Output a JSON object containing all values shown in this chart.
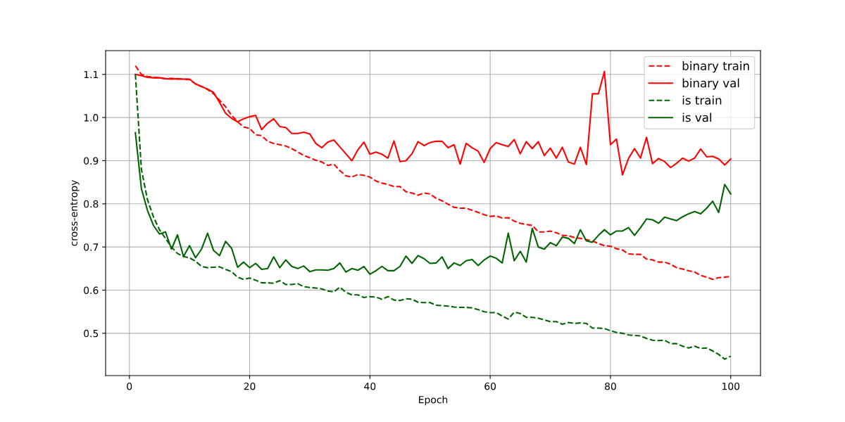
{
  "chart_data": {
    "type": "line",
    "xlabel": "Epoch",
    "ylabel": "cross-entropy",
    "x": [
      1,
      2,
      3,
      4,
      5,
      6,
      7,
      8,
      9,
      10,
      11,
      12,
      13,
      14,
      15,
      16,
      17,
      18,
      19,
      20,
      21,
      22,
      23,
      24,
      25,
      26,
      27,
      28,
      29,
      30,
      31,
      32,
      33,
      34,
      35,
      36,
      37,
      38,
      39,
      40,
      41,
      42,
      43,
      44,
      45,
      46,
      47,
      48,
      49,
      50,
      51,
      52,
      53,
      54,
      55,
      56,
      57,
      58,
      59,
      60,
      61,
      62,
      63,
      64,
      65,
      66,
      67,
      68,
      69,
      70,
      71,
      72,
      73,
      74,
      75,
      76,
      77,
      78,
      79,
      80,
      81,
      82,
      83,
      84,
      85,
      86,
      87,
      88,
      89,
      90,
      91,
      92,
      93,
      94,
      95,
      96,
      97,
      98,
      99,
      100
    ],
    "series": [
      {
        "name": "binary train",
        "color": "#ff0000",
        "line_style": "dashed",
        "values": [
          1.12,
          1.1,
          1.095,
          1.093,
          1.092,
          1.09,
          1.091,
          1.089,
          1.089,
          1.088,
          1.078,
          1.072,
          1.065,
          1.055,
          1.04,
          1.025,
          1.005,
          0.99,
          0.978,
          0.975,
          0.96,
          0.958,
          0.945,
          0.94,
          0.937,
          0.934,
          0.928,
          0.92,
          0.912,
          0.907,
          0.901,
          0.897,
          0.889,
          0.892,
          0.877,
          0.865,
          0.862,
          0.868,
          0.866,
          0.862,
          0.853,
          0.848,
          0.845,
          0.84,
          0.84,
          0.828,
          0.825,
          0.82,
          0.825,
          0.823,
          0.813,
          0.807,
          0.799,
          0.792,
          0.79,
          0.79,
          0.785,
          0.78,
          0.775,
          0.771,
          0.772,
          0.767,
          0.768,
          0.76,
          0.755,
          0.752,
          0.75,
          0.735,
          0.735,
          0.737,
          0.733,
          0.727,
          0.726,
          0.722,
          0.72,
          0.717,
          0.714,
          0.708,
          0.703,
          0.702,
          0.696,
          0.693,
          0.684,
          0.683,
          0.683,
          0.672,
          0.67,
          0.665,
          0.665,
          0.66,
          0.652,
          0.649,
          0.645,
          0.642,
          0.634,
          0.63,
          0.625,
          0.629,
          0.63,
          0.632
        ]
      },
      {
        "name": "binary val",
        "color": "#ff0000",
        "line_style": "solid",
        "values": [
          1.1,
          1.097,
          1.093,
          1.092,
          1.092,
          1.09,
          1.089,
          1.09,
          1.089,
          1.089,
          1.078,
          1.072,
          1.066,
          1.058,
          1.035,
          1.01,
          0.998,
          0.99,
          0.997,
          1.002,
          1.005,
          0.972,
          0.987,
          0.997,
          0.979,
          0.977,
          0.963,
          0.963,
          0.966,
          0.962,
          0.94,
          0.93,
          0.943,
          0.948,
          0.932,
          0.916,
          0.9,
          0.925,
          0.943,
          0.915,
          0.92,
          0.915,
          0.906,
          0.946,
          0.898,
          0.9,
          0.916,
          0.944,
          0.935,
          0.942,
          0.945,
          0.945,
          0.93,
          0.937,
          0.892,
          0.94,
          0.93,
          0.922,
          0.896,
          0.928,
          0.942,
          0.937,
          0.933,
          0.949,
          0.916,
          0.944,
          0.928,
          0.944,
          0.912,
          0.929,
          0.906,
          0.931,
          0.897,
          0.892,
          0.931,
          0.891,
          1.055,
          1.055,
          1.107,
          0.937,
          0.95,
          0.867,
          0.905,
          0.928,
          0.906,
          0.954,
          0.893,
          0.905,
          0.898,
          0.884,
          0.894,
          0.906,
          0.899,
          0.906,
          0.927,
          0.909,
          0.91,
          0.904,
          0.89,
          0.904
        ]
      },
      {
        "name": "is train",
        "color": "#006400",
        "line_style": "dashed",
        "values": [
          1.1,
          0.88,
          0.81,
          0.77,
          0.74,
          0.72,
          0.7,
          0.685,
          0.678,
          0.675,
          0.667,
          0.655,
          0.652,
          0.653,
          0.654,
          0.648,
          0.643,
          0.63,
          0.625,
          0.628,
          0.623,
          0.617,
          0.617,
          0.616,
          0.622,
          0.613,
          0.613,
          0.615,
          0.608,
          0.606,
          0.605,
          0.603,
          0.598,
          0.596,
          0.607,
          0.595,
          0.589,
          0.589,
          0.583,
          0.585,
          0.584,
          0.579,
          0.585,
          0.577,
          0.576,
          0.58,
          0.579,
          0.572,
          0.571,
          0.571,
          0.565,
          0.564,
          0.563,
          0.561,
          0.56,
          0.56,
          0.559,
          0.555,
          0.55,
          0.548,
          0.548,
          0.54,
          0.533,
          0.549,
          0.546,
          0.537,
          0.537,
          0.535,
          0.531,
          0.527,
          0.527,
          0.521,
          0.525,
          0.523,
          0.524,
          0.523,
          0.512,
          0.512,
          0.511,
          0.506,
          0.502,
          0.5,
          0.496,
          0.495,
          0.494,
          0.488,
          0.484,
          0.483,
          0.484,
          0.476,
          0.476,
          0.47,
          0.466,
          0.47,
          0.465,
          0.466,
          0.459,
          0.451,
          0.44,
          0.447
        ]
      },
      {
        "name": "is val",
        "color": "#006400",
        "line_style": "solid",
        "values": [
          0.965,
          0.835,
          0.785,
          0.75,
          0.73,
          0.735,
          0.695,
          0.728,
          0.678,
          0.703,
          0.675,
          0.695,
          0.732,
          0.692,
          0.68,
          0.713,
          0.697,
          0.653,
          0.665,
          0.652,
          0.662,
          0.648,
          0.65,
          0.677,
          0.652,
          0.67,
          0.655,
          0.65,
          0.656,
          0.643,
          0.647,
          0.647,
          0.646,
          0.65,
          0.663,
          0.642,
          0.65,
          0.646,
          0.655,
          0.637,
          0.645,
          0.655,
          0.645,
          0.645,
          0.655,
          0.679,
          0.662,
          0.68,
          0.673,
          0.662,
          0.663,
          0.677,
          0.65,
          0.663,
          0.657,
          0.668,
          0.671,
          0.657,
          0.67,
          0.679,
          0.674,
          0.663,
          0.732,
          0.668,
          0.69,
          0.665,
          0.743,
          0.7,
          0.695,
          0.71,
          0.703,
          0.723,
          0.72,
          0.708,
          0.74,
          0.714,
          0.711,
          0.727,
          0.74,
          0.728,
          0.737,
          0.737,
          0.745,
          0.727,
          0.745,
          0.765,
          0.763,
          0.755,
          0.769,
          0.765,
          0.761,
          0.77,
          0.777,
          0.782,
          0.777,
          0.79,
          0.806,
          0.78,
          0.845,
          0.823
        ]
      }
    ],
    "xlim": [
      -3.95,
      104.95
    ],
    "xticks": [
      0,
      20,
      40,
      60,
      80,
      100
    ],
    "ylim": [
      0.402,
      1.155
    ],
    "yticks": [
      0.5,
      0.6,
      0.7,
      0.8,
      0.9,
      {
        "value": 1.0,
        "label": "1.0"
      },
      1.1
    ],
    "grid": true,
    "legend": "top right"
  }
}
